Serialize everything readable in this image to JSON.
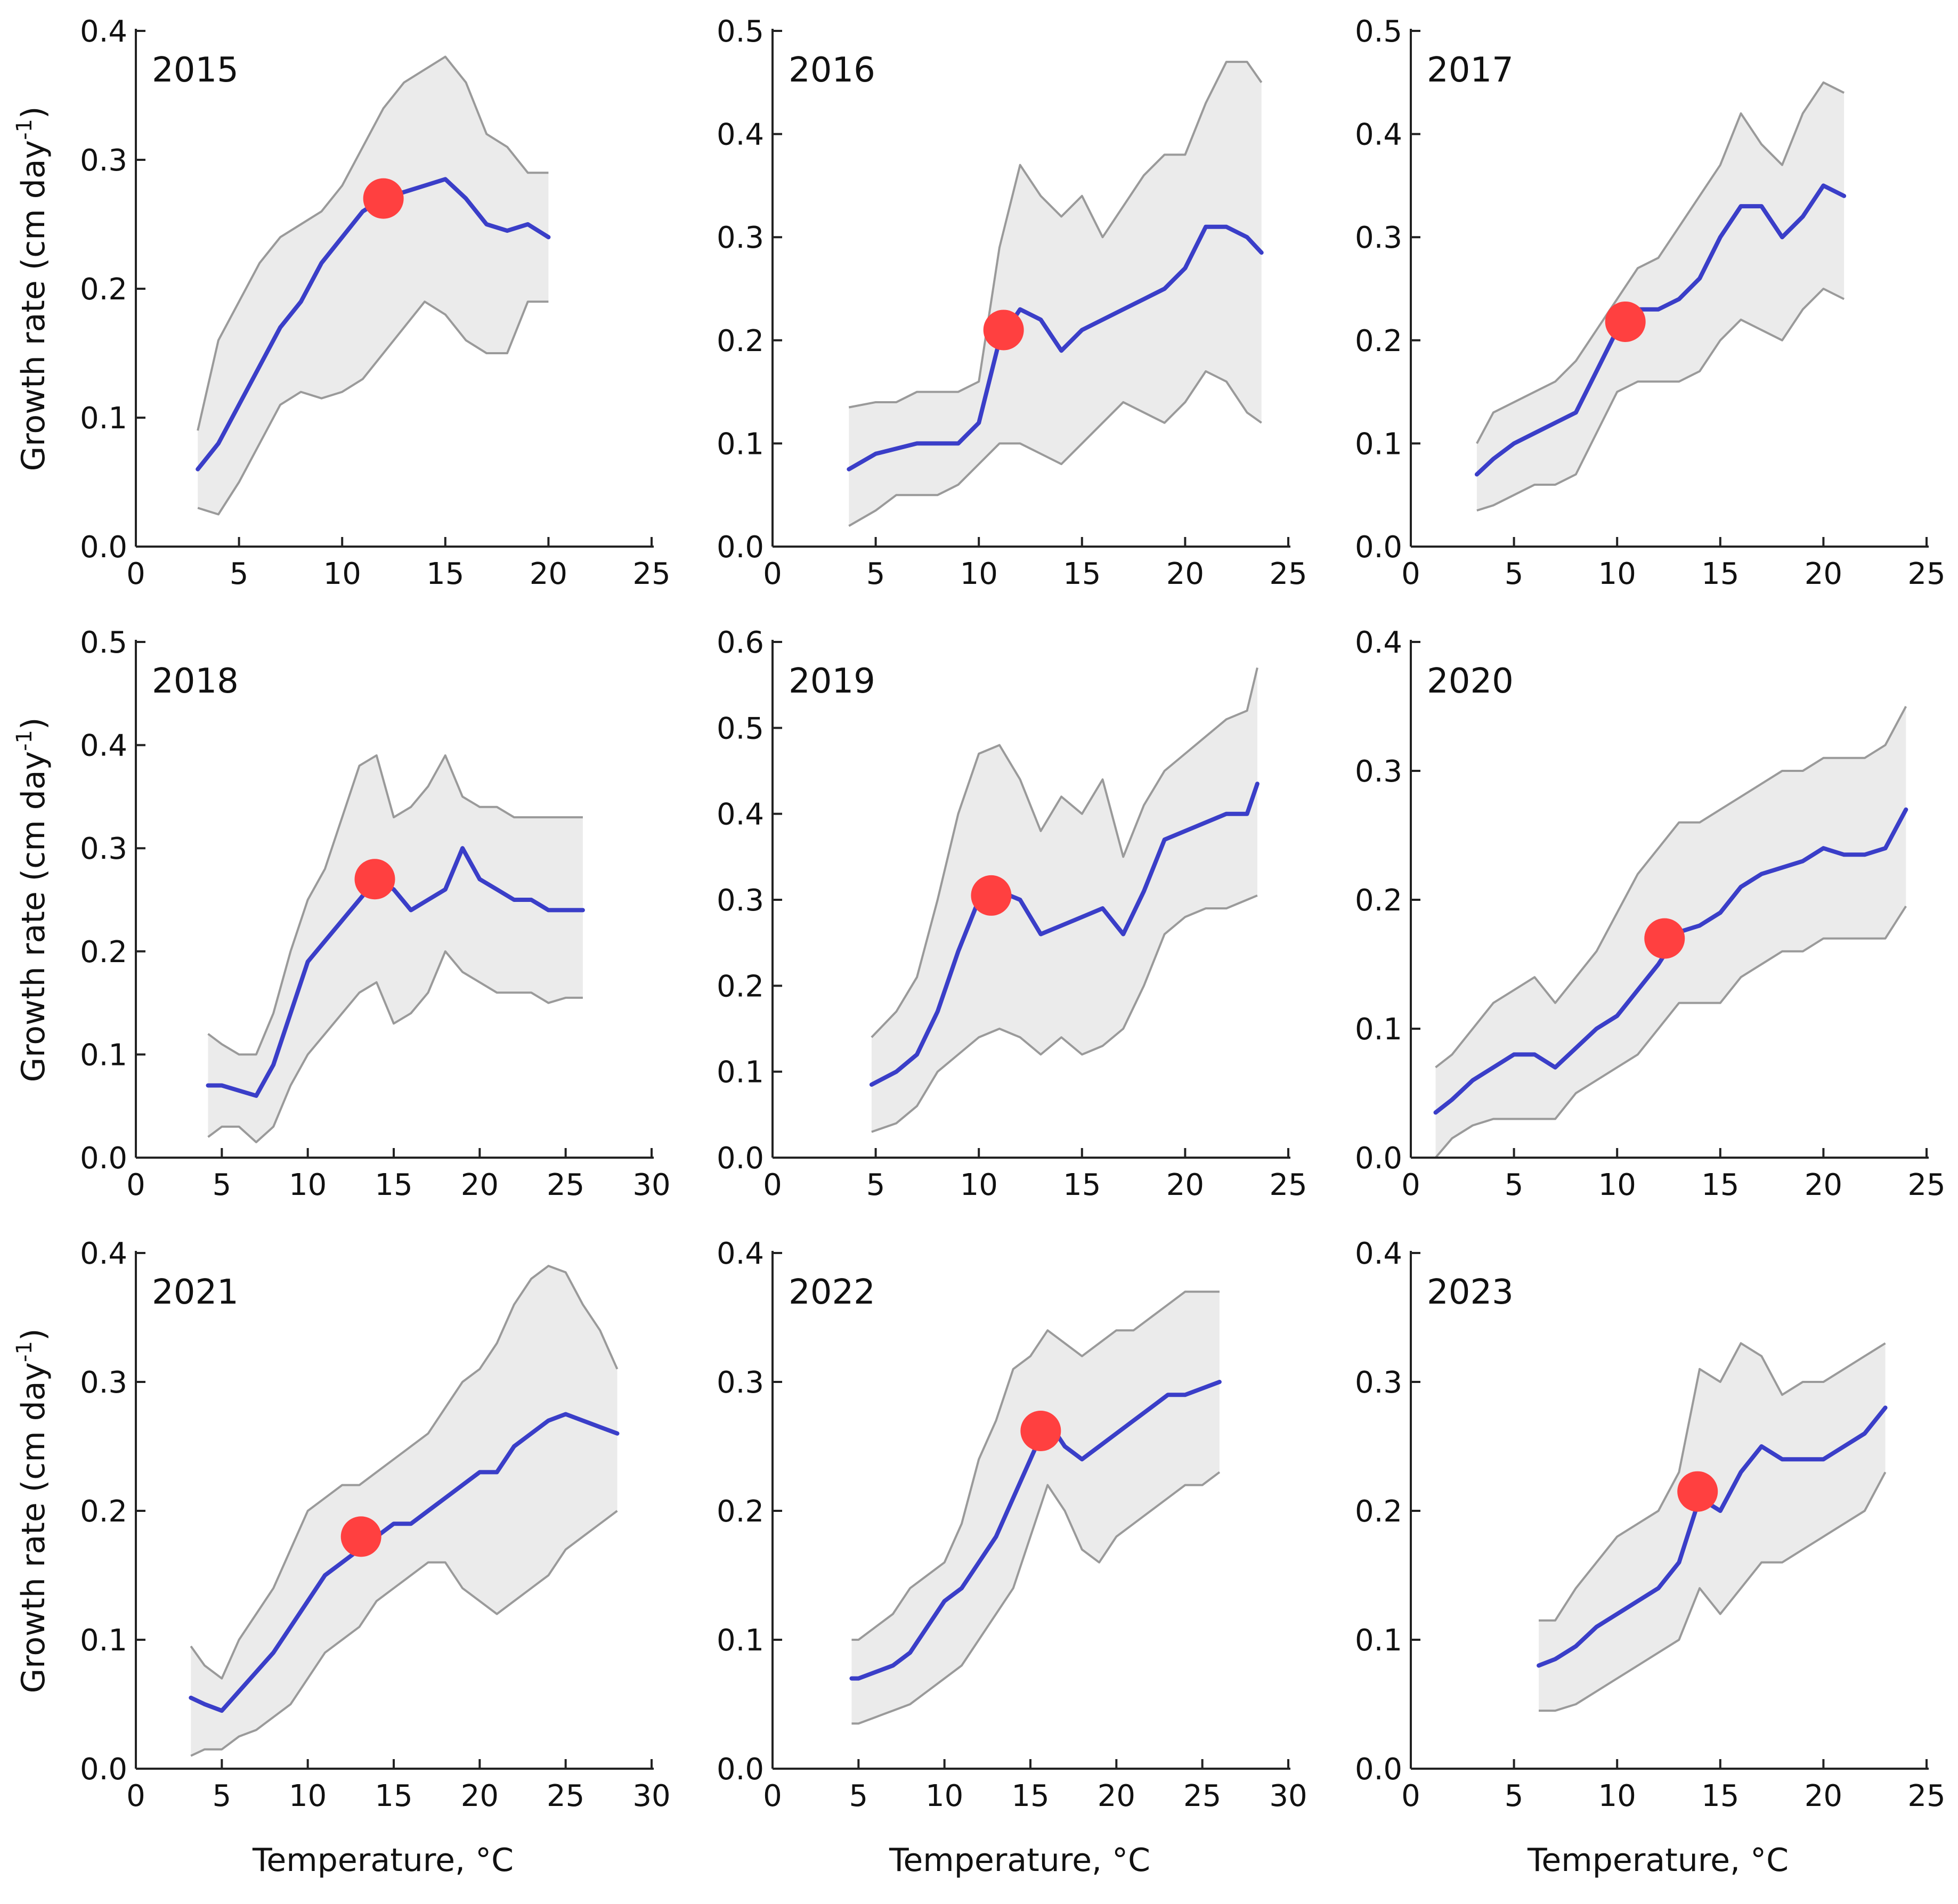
{
  "figure": {
    "ylabel_main": "Growth rate (cm day",
    "ylabel_sup": "-1",
    "ylabel_close": ")",
    "xlabel": "Temperature, °C"
  },
  "colors": {
    "mean_line": "#3a3ec8",
    "band_fill": "#ebebeb",
    "band_edge": "#9a9a9a",
    "optimum_marker": "#ff4040"
  },
  "chart_data": [
    {
      "type": "line",
      "title": "2015",
      "xlim": [
        0,
        25
      ],
      "ylim": [
        0,
        0.4
      ],
      "xticks": [
        0,
        5,
        10,
        15,
        20,
        25
      ],
      "yticks": [
        "0.0",
        "0.1",
        "0.2",
        "0.3",
        "0.4"
      ],
      "x": [
        3,
        4,
        5,
        6,
        7,
        8,
        9,
        10,
        11,
        12,
        13,
        14,
        15,
        16,
        17,
        18,
        19,
        20
      ],
      "mean": [
        0.06,
        0.08,
        0.11,
        0.14,
        0.17,
        0.19,
        0.22,
        0.24,
        0.26,
        0.27,
        0.275,
        0.28,
        0.285,
        0.27,
        0.25,
        0.245,
        0.25,
        0.24
      ],
      "upper": [
        0.09,
        0.16,
        0.19,
        0.22,
        0.24,
        0.25,
        0.26,
        0.28,
        0.31,
        0.34,
        0.36,
        0.37,
        0.38,
        0.36,
        0.32,
        0.31,
        0.29,
        0.29
      ],
      "lower": [
        0.03,
        0.025,
        0.05,
        0.08,
        0.11,
        0.12,
        0.115,
        0.12,
        0.13,
        0.15,
        0.17,
        0.19,
        0.18,
        0.16,
        0.15,
        0.15,
        0.19,
        0.19
      ],
      "optimum": {
        "x": 12,
        "y": 0.27
      }
    },
    {
      "type": "line",
      "title": "2016",
      "xlim": [
        0,
        25
      ],
      "ylim": [
        0,
        0.5
      ],
      "xticks": [
        0,
        5,
        10,
        15,
        20,
        25
      ],
      "yticks": [
        "0.0",
        "0.1",
        "0.2",
        "0.3",
        "0.4",
        "0.5"
      ],
      "x": [
        3.7,
        5,
        6,
        7,
        8,
        9,
        10,
        11,
        12,
        13,
        14,
        15,
        16,
        17,
        18,
        19,
        20,
        21,
        22,
        23,
        23.7
      ],
      "mean": [
        0.075,
        0.09,
        0.095,
        0.1,
        0.1,
        0.1,
        0.12,
        0.2,
        0.23,
        0.22,
        0.19,
        0.21,
        0.22,
        0.23,
        0.24,
        0.25,
        0.27,
        0.31,
        0.31,
        0.3,
        0.285
      ],
      "upper": [
        0.135,
        0.14,
        0.14,
        0.15,
        0.15,
        0.15,
        0.16,
        0.29,
        0.37,
        0.34,
        0.32,
        0.34,
        0.3,
        0.33,
        0.36,
        0.38,
        0.38,
        0.43,
        0.47,
        0.47,
        0.45
      ],
      "lower": [
        0.02,
        0.035,
        0.05,
        0.05,
        0.05,
        0.06,
        0.08,
        0.1,
        0.1,
        0.09,
        0.08,
        0.1,
        0.12,
        0.14,
        0.13,
        0.12,
        0.14,
        0.17,
        0.16,
        0.13,
        0.12
      ],
      "optimum": {
        "x": 11.2,
        "y": 0.21
      }
    },
    {
      "type": "line",
      "title": "2017",
      "xlim": [
        0,
        25
      ],
      "ylim": [
        0,
        0.5
      ],
      "xticks": [
        0,
        5,
        10,
        15,
        20,
        25
      ],
      "yticks": [
        "0.0",
        "0.1",
        "0.2",
        "0.3",
        "0.4",
        "0.5"
      ],
      "x": [
        3.2,
        4,
        5,
        6,
        7,
        8,
        9,
        10,
        11,
        12,
        13,
        14,
        15,
        16,
        17,
        18,
        19,
        20,
        21
      ],
      "mean": [
        0.07,
        0.085,
        0.1,
        0.11,
        0.12,
        0.13,
        0.17,
        0.21,
        0.23,
        0.23,
        0.24,
        0.26,
        0.3,
        0.33,
        0.33,
        0.3,
        0.32,
        0.35,
        0.34
      ],
      "upper": [
        0.1,
        0.13,
        0.14,
        0.15,
        0.16,
        0.18,
        0.21,
        0.24,
        0.27,
        0.28,
        0.31,
        0.34,
        0.37,
        0.42,
        0.39,
        0.37,
        0.42,
        0.45,
        0.44
      ],
      "lower": [
        0.035,
        0.04,
        0.05,
        0.06,
        0.06,
        0.07,
        0.11,
        0.15,
        0.16,
        0.16,
        0.16,
        0.17,
        0.2,
        0.22,
        0.21,
        0.2,
        0.23,
        0.25,
        0.24
      ],
      "optimum": {
        "x": 10.4,
        "y": 0.218
      }
    },
    {
      "type": "line",
      "title": "2018",
      "xlim": [
        0,
        30
      ],
      "ylim": [
        0,
        0.5
      ],
      "xticks": [
        0,
        5,
        10,
        15,
        20,
        25,
        30
      ],
      "yticks": [
        "0.0",
        "0.1",
        "0.2",
        "0.3",
        "0.4",
        "0.5"
      ],
      "x": [
        4.2,
        5,
        6,
        7,
        8,
        9,
        10,
        11,
        12,
        13,
        14,
        15,
        16,
        17,
        18,
        19,
        20,
        21,
        22,
        23,
        24,
        25,
        26
      ],
      "mean": [
        0.07,
        0.07,
        0.065,
        0.06,
        0.09,
        0.14,
        0.19,
        0.21,
        0.23,
        0.25,
        0.27,
        0.26,
        0.24,
        0.25,
        0.26,
        0.3,
        0.27,
        0.26,
        0.25,
        0.25,
        0.24,
        0.24,
        0.24
      ],
      "upper": [
        0.12,
        0.11,
        0.1,
        0.1,
        0.14,
        0.2,
        0.25,
        0.28,
        0.33,
        0.38,
        0.39,
        0.33,
        0.34,
        0.36,
        0.39,
        0.35,
        0.34,
        0.34,
        0.33,
        0.33,
        0.33,
        0.33,
        0.33
      ],
      "lower": [
        0.02,
        0.03,
        0.03,
        0.015,
        0.03,
        0.07,
        0.1,
        0.12,
        0.14,
        0.16,
        0.17,
        0.13,
        0.14,
        0.16,
        0.2,
        0.18,
        0.17,
        0.16,
        0.16,
        0.16,
        0.15,
        0.155,
        0.155
      ],
      "optimum": {
        "x": 13.9,
        "y": 0.27
      }
    },
    {
      "type": "line",
      "title": "2019",
      "xlim": [
        0,
        25
      ],
      "ylim": [
        0,
        0.6
      ],
      "xticks": [
        0,
        5,
        10,
        15,
        20,
        25
      ],
      "yticks": [
        "0.0",
        "0.1",
        "0.2",
        "0.3",
        "0.4",
        "0.5",
        "0.6"
      ],
      "x": [
        4.8,
        6,
        7,
        8,
        9,
        10,
        11,
        12,
        13,
        14,
        15,
        16,
        17,
        18,
        19,
        20,
        21,
        22,
        23,
        23.5
      ],
      "mean": [
        0.085,
        0.1,
        0.12,
        0.17,
        0.24,
        0.3,
        0.31,
        0.3,
        0.26,
        0.27,
        0.28,
        0.29,
        0.26,
        0.31,
        0.37,
        0.38,
        0.39,
        0.4,
        0.4,
        0.435
      ],
      "upper": [
        0.14,
        0.17,
        0.21,
        0.3,
        0.4,
        0.47,
        0.48,
        0.44,
        0.38,
        0.42,
        0.4,
        0.44,
        0.35,
        0.41,
        0.45,
        0.47,
        0.49,
        0.51,
        0.52,
        0.57
      ],
      "lower": [
        0.03,
        0.04,
        0.06,
        0.1,
        0.12,
        0.14,
        0.15,
        0.14,
        0.12,
        0.14,
        0.12,
        0.13,
        0.15,
        0.2,
        0.26,
        0.28,
        0.29,
        0.29,
        0.3,
        0.305
      ],
      "optimum": {
        "x": 10.6,
        "y": 0.305
      }
    },
    {
      "type": "line",
      "title": "2020",
      "xlim": [
        0,
        25
      ],
      "ylim": [
        0,
        0.4
      ],
      "xticks": [
        0,
        5,
        10,
        15,
        20,
        25
      ],
      "yticks": [
        "0.0",
        "0.1",
        "0.2",
        "0.3",
        "0.4"
      ],
      "x": [
        1.2,
        2,
        3,
        4,
        5,
        6,
        7,
        8,
        9,
        10,
        11,
        12,
        13,
        14,
        15,
        16,
        17,
        18,
        19,
        20,
        21,
        22,
        23,
        24
      ],
      "mean": [
        0.035,
        0.045,
        0.06,
        0.07,
        0.08,
        0.08,
        0.07,
        0.085,
        0.1,
        0.11,
        0.13,
        0.15,
        0.175,
        0.18,
        0.19,
        0.21,
        0.22,
        0.225,
        0.23,
        0.24,
        0.235,
        0.235,
        0.24,
        0.27
      ],
      "upper": [
        0.07,
        0.08,
        0.1,
        0.12,
        0.13,
        0.14,
        0.12,
        0.14,
        0.16,
        0.19,
        0.22,
        0.24,
        0.26,
        0.26,
        0.27,
        0.28,
        0.29,
        0.3,
        0.3,
        0.31,
        0.31,
        0.31,
        0.32,
        0.35
      ],
      "lower": [
        0.0,
        0.015,
        0.025,
        0.03,
        0.03,
        0.03,
        0.03,
        0.05,
        0.06,
        0.07,
        0.08,
        0.1,
        0.12,
        0.12,
        0.12,
        0.14,
        0.15,
        0.16,
        0.16,
        0.17,
        0.17,
        0.17,
        0.17,
        0.195
      ],
      "optimum": {
        "x": 12.3,
        "y": 0.17
      }
    },
    {
      "type": "line",
      "title": "2021",
      "xlim": [
        0,
        30
      ],
      "ylim": [
        0,
        0.4
      ],
      "xticks": [
        0,
        5,
        10,
        15,
        20,
        25,
        30
      ],
      "yticks": [
        "0.0",
        "0.1",
        "0.2",
        "0.3",
        "0.4"
      ],
      "x": [
        3.2,
        4,
        5,
        6,
        7,
        8,
        9,
        10,
        11,
        12,
        13,
        14,
        15,
        16,
        17,
        18,
        19,
        20,
        21,
        22,
        23,
        24,
        25,
        26,
        27,
        28
      ],
      "mean": [
        0.055,
        0.05,
        0.045,
        0.06,
        0.075,
        0.09,
        0.11,
        0.13,
        0.15,
        0.16,
        0.17,
        0.18,
        0.19,
        0.19,
        0.2,
        0.21,
        0.22,
        0.23,
        0.23,
        0.25,
        0.26,
        0.27,
        0.275,
        0.27,
        0.265,
        0.26
      ],
      "upper": [
        0.095,
        0.08,
        0.07,
        0.1,
        0.12,
        0.14,
        0.17,
        0.2,
        0.21,
        0.22,
        0.22,
        0.23,
        0.24,
        0.25,
        0.26,
        0.28,
        0.3,
        0.31,
        0.33,
        0.36,
        0.38,
        0.39,
        0.385,
        0.36,
        0.34,
        0.31
      ],
      "lower": [
        0.01,
        0.015,
        0.015,
        0.025,
        0.03,
        0.04,
        0.05,
        0.07,
        0.09,
        0.1,
        0.11,
        0.13,
        0.14,
        0.15,
        0.16,
        0.16,
        0.14,
        0.13,
        0.12,
        0.13,
        0.14,
        0.15,
        0.17,
        0.18,
        0.19,
        0.2
      ],
      "optimum": {
        "x": 13.1,
        "y": 0.18
      }
    },
    {
      "type": "line",
      "title": "2022",
      "xlim": [
        0,
        30
      ],
      "ylim": [
        0,
        0.4
      ],
      "xticks": [
        0,
        5,
        10,
        15,
        20,
        25,
        30
      ],
      "yticks": [
        "0.0",
        "0.1",
        "0.2",
        "0.3",
        "0.4"
      ],
      "x": [
        4.6,
        5,
        6,
        7,
        8,
        9,
        10,
        11,
        12,
        13,
        14,
        15,
        16,
        17,
        18,
        19,
        20,
        21,
        22,
        23,
        24,
        25,
        26
      ],
      "mean": [
        0.07,
        0.07,
        0.075,
        0.08,
        0.09,
        0.11,
        0.13,
        0.14,
        0.16,
        0.18,
        0.21,
        0.24,
        0.27,
        0.25,
        0.24,
        0.25,
        0.26,
        0.27,
        0.28,
        0.29,
        0.29,
        0.295,
        0.3
      ],
      "upper": [
        0.1,
        0.1,
        0.11,
        0.12,
        0.14,
        0.15,
        0.16,
        0.19,
        0.24,
        0.27,
        0.31,
        0.32,
        0.34,
        0.33,
        0.32,
        0.33,
        0.34,
        0.34,
        0.35,
        0.36,
        0.37,
        0.37,
        0.37
      ],
      "lower": [
        0.035,
        0.035,
        0.04,
        0.045,
        0.05,
        0.06,
        0.07,
        0.08,
        0.1,
        0.12,
        0.14,
        0.18,
        0.22,
        0.2,
        0.17,
        0.16,
        0.18,
        0.19,
        0.2,
        0.21,
        0.22,
        0.22,
        0.23
      ],
      "optimum": {
        "x": 15.6,
        "y": 0.262
      }
    },
    {
      "type": "line",
      "title": "2023",
      "xlim": [
        0,
        25
      ],
      "ylim": [
        0,
        0.4
      ],
      "xticks": [
        0,
        5,
        10,
        15,
        20,
        25
      ],
      "yticks": [
        "0.0",
        "0.1",
        "0.2",
        "0.3",
        "0.4"
      ],
      "x": [
        6.2,
        7,
        8,
        9,
        10,
        11,
        12,
        13,
        14,
        15,
        16,
        17,
        18,
        19,
        20,
        21,
        22,
        23
      ],
      "mean": [
        0.08,
        0.085,
        0.095,
        0.11,
        0.12,
        0.13,
        0.14,
        0.16,
        0.21,
        0.2,
        0.23,
        0.25,
        0.24,
        0.24,
        0.24,
        0.25,
        0.26,
        0.28
      ],
      "upper": [
        0.115,
        0.115,
        0.14,
        0.16,
        0.18,
        0.19,
        0.2,
        0.23,
        0.31,
        0.3,
        0.33,
        0.32,
        0.29,
        0.3,
        0.3,
        0.31,
        0.32,
        0.33
      ],
      "lower": [
        0.045,
        0.045,
        0.05,
        0.06,
        0.07,
        0.08,
        0.09,
        0.1,
        0.14,
        0.12,
        0.14,
        0.16,
        0.16,
        0.17,
        0.18,
        0.19,
        0.2,
        0.23
      ],
      "optimum": {
        "x": 13.9,
        "y": 0.215
      }
    }
  ]
}
